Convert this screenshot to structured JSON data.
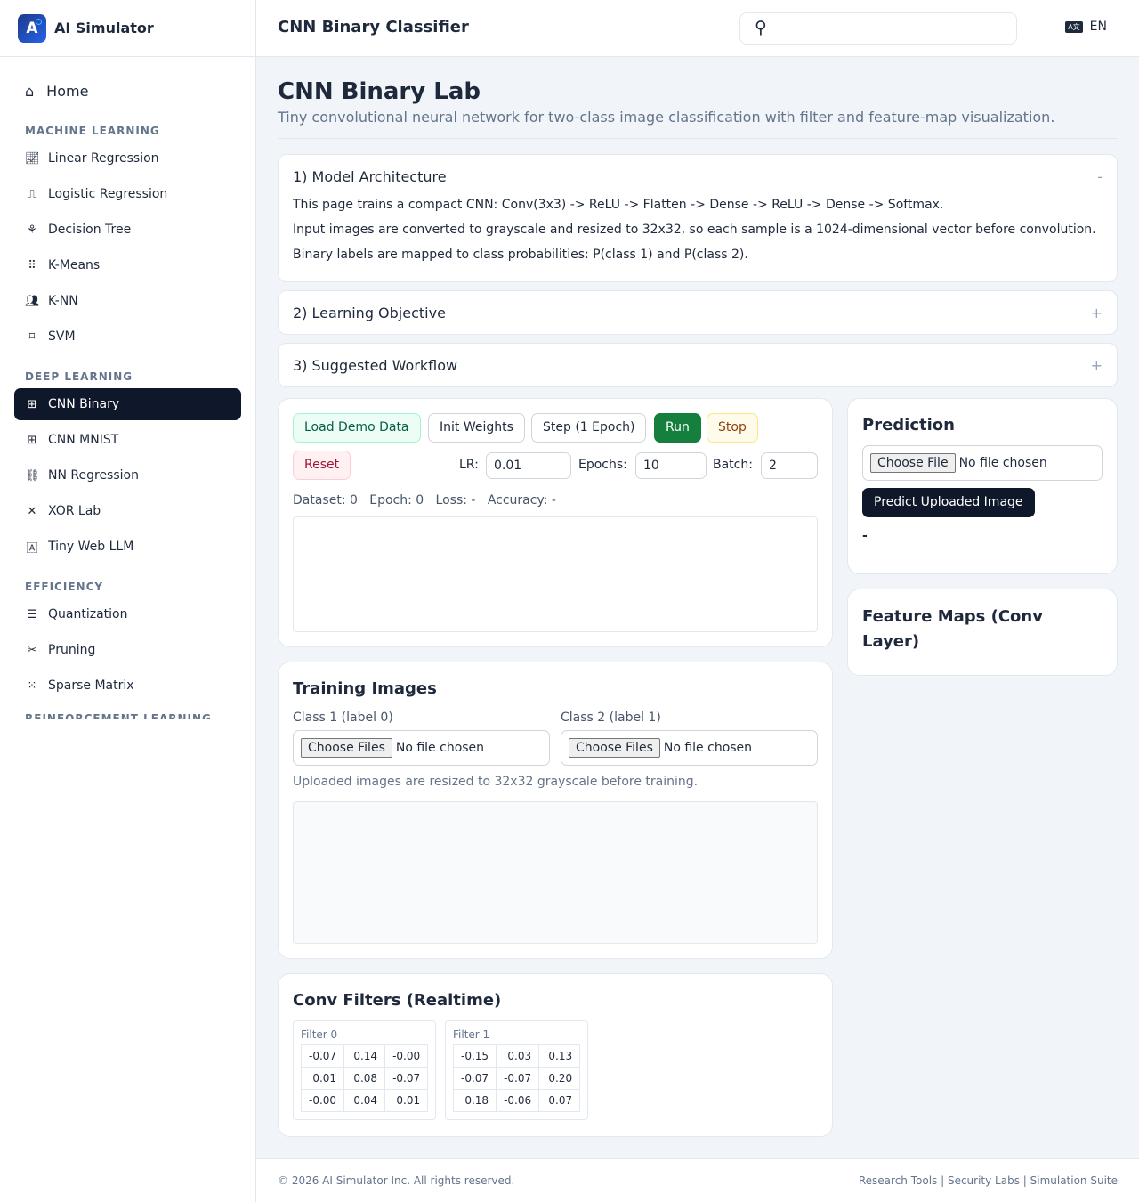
{
  "brand": {
    "name": "AI Simulator",
    "logo_letter": "A"
  },
  "header": {
    "title": "CNN Binary Classifier",
    "search_placeholder": "",
    "lang": "EN"
  },
  "sidebar": {
    "home": "Home",
    "sections": [
      {
        "title": "MACHINE LEARNING",
        "items": [
          {
            "label": "Linear Regression",
            "icon": "chart-line-icon"
          },
          {
            "label": "Logistic Regression",
            "icon": "step-wave-icon"
          },
          {
            "label": "Decision Tree",
            "icon": "sitemap-icon"
          },
          {
            "label": "K-Means",
            "icon": "dots-grid-icon"
          },
          {
            "label": "K-NN",
            "icon": "people-group-icon"
          },
          {
            "label": "SVM",
            "icon": "vector-square-icon"
          }
        ]
      },
      {
        "title": "DEEP LEARNING",
        "items": [
          {
            "label": "CNN Binary",
            "icon": "grid-icon",
            "active": true
          },
          {
            "label": "CNN MNIST",
            "icon": "grid-icon"
          },
          {
            "label": "NN Regression",
            "icon": "network-icon"
          },
          {
            "label": "XOR Lab",
            "icon": "x-icon"
          },
          {
            "label": "Tiny Web LLM",
            "icon": "language-icon"
          }
        ]
      },
      {
        "title": "EFFICIENCY",
        "items": [
          {
            "label": "Quantization",
            "icon": "sliders-icon"
          },
          {
            "label": "Pruning",
            "icon": "scissors-icon"
          },
          {
            "label": "Sparse Matrix",
            "icon": "sparse-grid-icon"
          }
        ]
      },
      {
        "title": "REINFORCEMENT LEARNING",
        "items": []
      }
    ]
  },
  "page": {
    "title": "CNN Binary Lab",
    "subtitle": "Tiny convolutional neural network for two-class image classification with filter and feature-map visualization."
  },
  "accordions": [
    {
      "title": "1) Model Architecture",
      "toggle": "-",
      "lines": [
        "This page trains a compact CNN: Conv(3x3) -> ReLU -> Flatten -> Dense -> ReLU -> Dense -> Softmax.",
        "Input images are converted to grayscale and resized to 32x32, so each sample is a 1024-dimensional vector before convolution.",
        "Binary labels are mapped to class probabilities: P(class 1) and P(class 2)."
      ]
    },
    {
      "title": "2) Learning Objective",
      "toggle": "+"
    },
    {
      "title": "3) Suggested Workflow",
      "toggle": "+"
    }
  ],
  "controls": {
    "load": "Load Demo Data",
    "init": "Init Weights",
    "step": "Step (1 Epoch)",
    "run": "Run",
    "stop": "Stop",
    "reset": "Reset",
    "lr_label": "LR:",
    "lr": "0.01",
    "epochs_label": "Epochs:",
    "epochs": "10",
    "batch_label": "Batch:",
    "batch": "2",
    "status": "Dataset: 0   Epoch: 0   Loss: -   Accuracy: -"
  },
  "training": {
    "title": "Training Images",
    "class1": "Class 1 (label 0)",
    "class2": "Class 2 (label 1)",
    "choose": "Choose Files",
    "no_file": "No file chosen",
    "note": "Uploaded images are resized to 32x32 grayscale before training."
  },
  "filters": {
    "title": "Conv Filters (Realtime)",
    "items": [
      {
        "name": "Filter 0",
        "rows": [
          [
            "-0.07",
            "0.14",
            "-0.00"
          ],
          [
            "0.01",
            "0.08",
            "-0.07"
          ],
          [
            "-0.00",
            "0.04",
            "0.01"
          ]
        ]
      },
      {
        "name": "Filter 1",
        "rows": [
          [
            "-0.15",
            "0.03",
            "0.13"
          ],
          [
            "-0.07",
            "-0.07",
            "0.20"
          ],
          [
            "0.18",
            "-0.06",
            "0.07"
          ]
        ]
      }
    ]
  },
  "prediction": {
    "title": "Prediction",
    "choose": "Choose File",
    "no_file": "No file chosen",
    "button": "Predict Uploaded Image",
    "result": "-"
  },
  "feature_maps": {
    "title": "Feature Maps (Conv Layer)"
  },
  "footer": {
    "copyright": "© 2026 AI Simulator Inc. All rights reserved.",
    "links": "Research Tools | Security Labs | Simulation Suite"
  },
  "colors": {
    "active_nav": "#0f172a",
    "run": "#15803d",
    "accent": "#1e3a8a"
  }
}
